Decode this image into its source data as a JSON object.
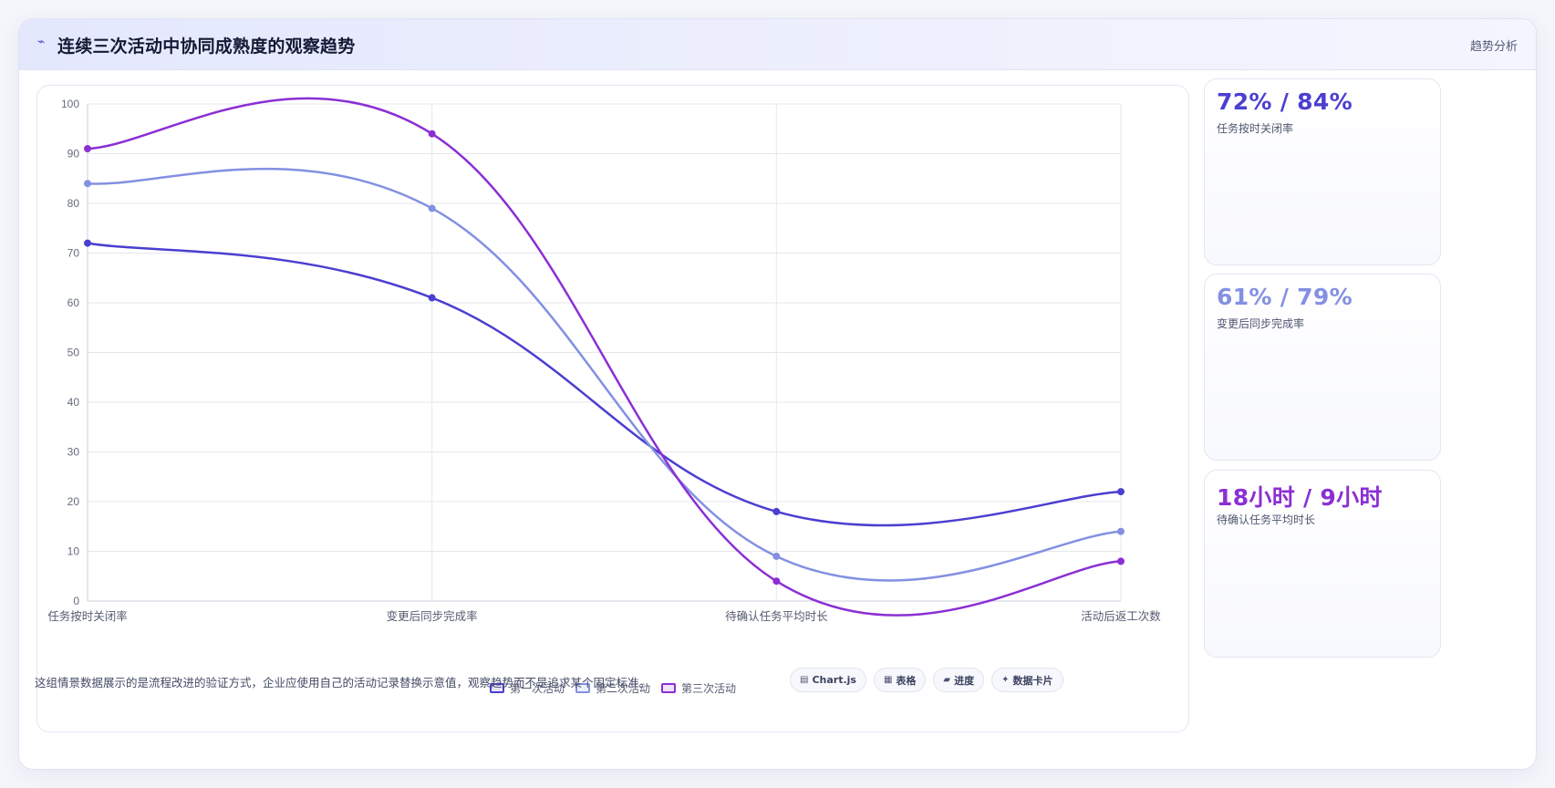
{
  "header": {
    "icon": "trend-icon",
    "icon_glyph": "⌁",
    "title": "连续三次活动中协同成熟度的观察趋势",
    "tag": "趋势分析"
  },
  "stats": [
    {
      "value": "72% / 84%",
      "label": "任务按时关闭率",
      "color": "#4b3fd0"
    },
    {
      "value": "61% / 79%",
      "label": "变更后同步完成率",
      "color": "#8390e2"
    },
    {
      "value": "18小时 / 9小时",
      "label": "待确认任务平均时长",
      "color": "#8b2fd4"
    }
  ],
  "footer": {
    "note": "这组情景数据展示的是流程改进的验证方式，企业应使用自己的活动记录替换示意值，观察趋势而不是追求某个固定标准。",
    "pills": [
      {
        "icon": "chart-icon",
        "glyph": "▤",
        "label": "Chart.js"
      },
      {
        "icon": "table-icon",
        "glyph": "▦",
        "label": "表格"
      },
      {
        "icon": "progress-icon",
        "glyph": "▰",
        "label": "进度"
      },
      {
        "icon": "card-icon",
        "glyph": "✦",
        "label": "数据卡片"
      }
    ]
  },
  "chart_data": {
    "type": "line",
    "categories": [
      "任务按时关闭率",
      "变更后同步完成率",
      "待确认任务平均时长",
      "活动后返工次数"
    ],
    "ylim": [
      0,
      100
    ],
    "yticks": [
      0,
      10,
      20,
      30,
      40,
      50,
      60,
      70,
      80,
      90,
      100
    ],
    "grid": true,
    "legend_position": "bottom",
    "series": [
      {
        "name": "第一次活动",
        "values": [
          72,
          61,
          18,
          22
        ],
        "color": "#4b3fd0"
      },
      {
        "name": "第二次活动",
        "values": [
          84,
          79,
          9,
          14
        ],
        "color": "#8390e2"
      },
      {
        "name": "第三次活动",
        "values": [
          91,
          94,
          4,
          8
        ],
        "color": "#8b2fd4"
      }
    ]
  }
}
